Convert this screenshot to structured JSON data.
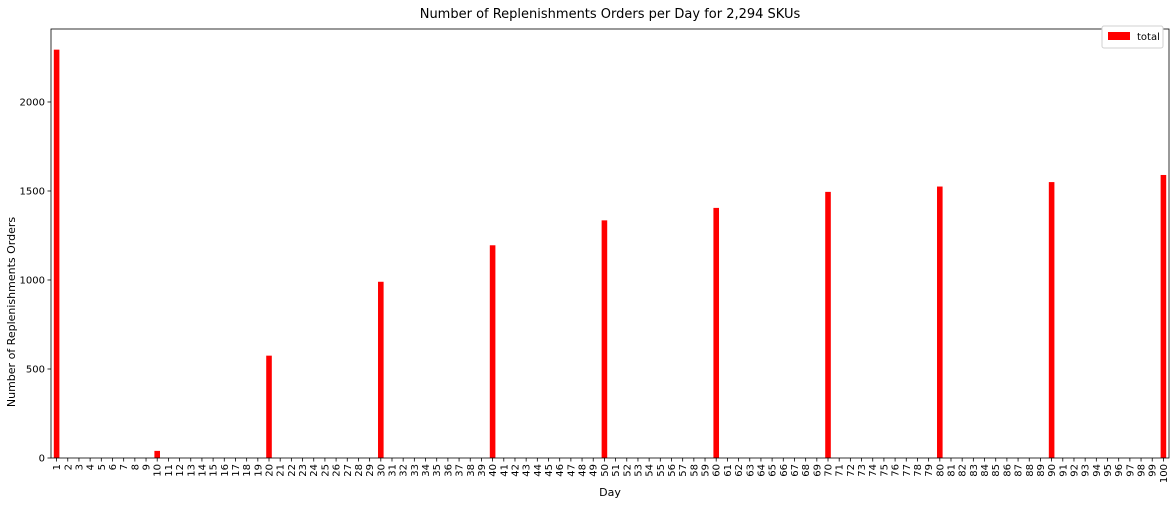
{
  "chart_data": {
    "type": "bar",
    "title": "Number of Replenishments Orders per Day for 2,294 SKUs",
    "xlabel": "Day",
    "ylabel": "Number of Replenishments Orders",
    "categories": [
      1,
      2,
      3,
      4,
      5,
      6,
      7,
      8,
      9,
      10,
      11,
      12,
      13,
      14,
      15,
      16,
      17,
      18,
      19,
      20,
      21,
      22,
      23,
      24,
      25,
      26,
      27,
      28,
      29,
      30,
      31,
      32,
      33,
      34,
      35,
      36,
      37,
      38,
      39,
      40,
      41,
      42,
      43,
      44,
      45,
      46,
      47,
      48,
      49,
      50,
      51,
      52,
      53,
      54,
      55,
      56,
      57,
      58,
      59,
      60,
      61,
      62,
      63,
      64,
      65,
      66,
      67,
      68,
      69,
      70,
      71,
      72,
      73,
      74,
      75,
      76,
      77,
      78,
      79,
      80,
      81,
      82,
      83,
      84,
      85,
      86,
      87,
      88,
      89,
      90,
      91,
      92,
      93,
      94,
      95,
      96,
      97,
      98,
      99,
      100
    ],
    "series": [
      {
        "name": "total",
        "color": "#ff0000",
        "values": [
          2294,
          0,
          0,
          0,
          0,
          0,
          0,
          0,
          0,
          40,
          0,
          0,
          0,
          0,
          0,
          0,
          0,
          0,
          0,
          575,
          0,
          0,
          0,
          0,
          0,
          0,
          0,
          0,
          0,
          990,
          0,
          0,
          0,
          0,
          0,
          0,
          0,
          0,
          0,
          1195,
          0,
          0,
          0,
          0,
          0,
          0,
          0,
          0,
          0,
          1335,
          0,
          0,
          0,
          0,
          0,
          0,
          0,
          0,
          0,
          1405,
          0,
          0,
          0,
          0,
          0,
          0,
          0,
          0,
          0,
          1495,
          0,
          0,
          0,
          0,
          0,
          0,
          0,
          0,
          0,
          1525,
          0,
          0,
          0,
          0,
          0,
          0,
          0,
          0,
          0,
          1550,
          0,
          0,
          0,
          0,
          0,
          0,
          0,
          0,
          0,
          1590
        ]
      }
    ],
    "ylim": [
      0,
      2410
    ],
    "yticks": [
      0,
      500,
      1000,
      1500,
      2000
    ],
    "legend_position": "top-right",
    "grid": false
  }
}
